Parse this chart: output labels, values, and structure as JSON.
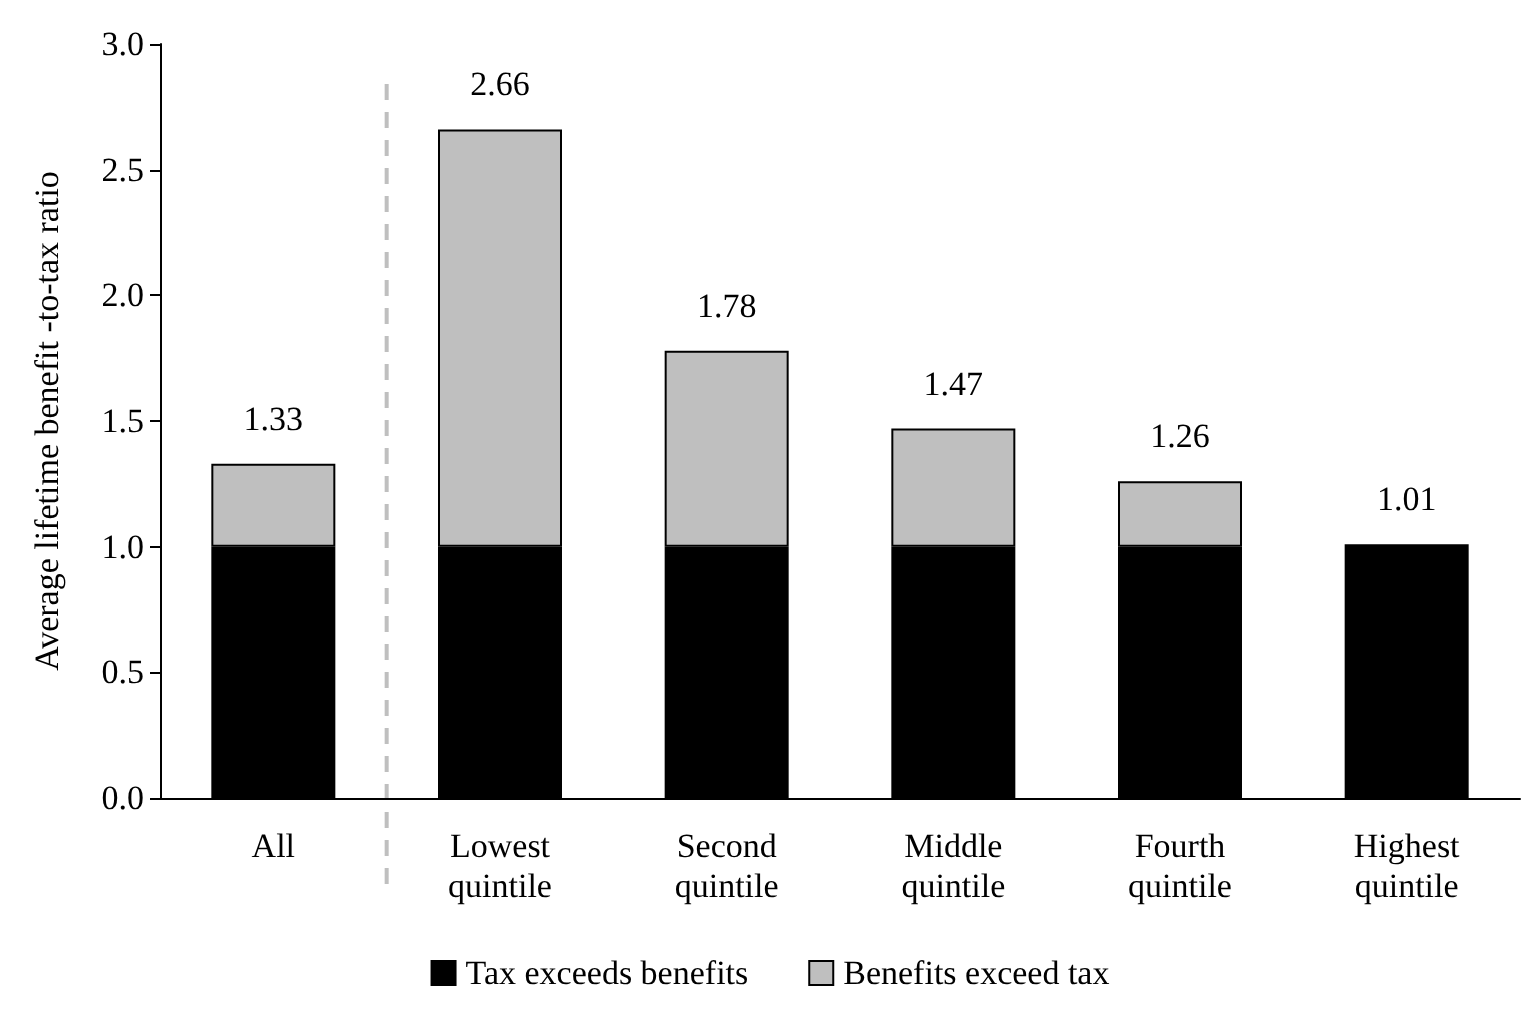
{
  "chart_data": {
    "type": "bar",
    "stacked": true,
    "ylabel": "Average lifetime benefit -to-tax ratio",
    "categories": [
      "All",
      "Lowest\nquintile",
      "Second\nquintile",
      "Middle\nquintile",
      "Fourth\nquintile",
      "Highest\nquintile"
    ],
    "series": [
      {
        "name": "Tax exceeds benefits",
        "color": "#000000",
        "values": [
          1,
          1,
          1,
          1,
          1,
          1.01
        ]
      },
      {
        "name": "Benefits exceed tax",
        "color": "#bfbfbf",
        "values": [
          0.33,
          1.66,
          0.78,
          0.47,
          0.26,
          null
        ]
      }
    ],
    "totals": [
      "1.33",
      "2.66",
      "1.78",
      "1.47",
      "1.26",
      "1.01"
    ],
    "ylim": [
      0,
      3
    ],
    "yticks": [
      {
        "value": 0,
        "label": "0.0"
      },
      {
        "value": 0.5,
        "label": "0.5"
      },
      {
        "value": 1,
        "label": "1.0"
      },
      {
        "value": 1.5,
        "label": "1.5"
      },
      {
        "value": 2,
        "label": "2.0"
      },
      {
        "value": 2.5,
        "label": "2.5"
      },
      {
        "value": 3,
        "label": "3.0"
      }
    ],
    "grid": false,
    "legend": "bottom"
  }
}
